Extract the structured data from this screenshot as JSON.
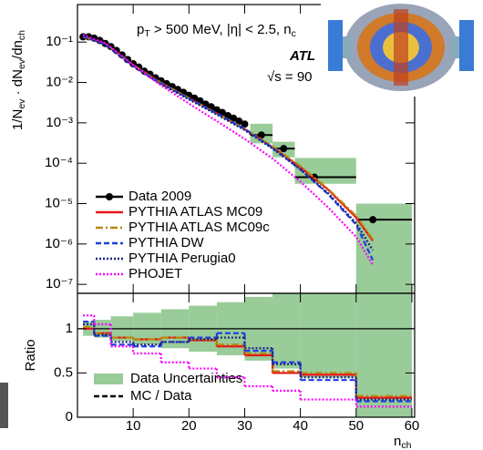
{
  "chart_data": [
    {
      "type": "line",
      "yscale": "log",
      "legend": "lower-left",
      "ylabel": [
        "1/N",
        "ev",
        " · dN",
        "ev",
        "/dn",
        "ch"
      ],
      "annotations": [
        [
          "p",
          "T",
          " > 500 MeV, |η| < 2.5, n",
          "c"
        ],
        [
          "ATL"
        ],
        [
          "√s = 90"
        ]
      ],
      "xlim": [
        0,
        60.5
      ],
      "xticks": [
        10,
        20,
        30,
        40,
        50,
        60
      ],
      "ylim": [
        6e-08,
        0.85
      ],
      "yticks": [
        {
          "value": 1e-07,
          "label": "10⁻⁷"
        },
        {
          "value": 1e-06,
          "label": "10⁻⁶"
        },
        {
          "value": 1e-05,
          "label": "10⁻⁵"
        },
        {
          "value": 0.0001,
          "label": "10⁻⁴"
        },
        {
          "value": 0.001,
          "label": "10⁻³"
        },
        {
          "value": 0.01,
          "label": "10⁻²"
        },
        {
          "value": 0.1,
          "label": "10⁻¹"
        }
      ],
      "band": {
        "color": "#99cc99",
        "edges": [
          31,
          35,
          39,
          50,
          60
        ],
        "low": [
          0.00031,
          0.00014,
          3.1e-05,
          6e-08
        ],
        "high": [
          0.00095,
          0.00034,
          0.000135,
          1e-05
        ]
      },
      "series": [
        {
          "name": "Data 2009",
          "color": "#000000",
          "dash": "solid",
          "marker": true,
          "x": [
            1,
            2,
            3,
            4,
            5,
            6,
            7,
            8,
            9,
            10,
            11,
            12,
            13,
            14,
            15,
            16,
            17,
            18,
            19,
            20,
            21,
            22,
            23,
            24,
            25,
            26,
            27,
            28,
            29,
            30,
            33,
            37,
            42.5,
            53
          ],
          "values": [
            0.135,
            0.135,
            0.125,
            0.11,
            0.092,
            0.077,
            0.062,
            0.048,
            0.037,
            0.029,
            0.024,
            0.019,
            0.016,
            0.013,
            0.011,
            0.0093,
            0.0079,
            0.0067,
            0.0057,
            0.0048,
            0.0041,
            0.0035,
            0.0029,
            0.0025,
            0.0021,
            0.0018,
            0.0015,
            0.0013,
            0.0011,
            0.00093,
            0.0005,
            0.00023,
            4.5e-05,
            4e-06
          ],
          "xbins": [
            null,
            null,
            null,
            null,
            null,
            null,
            null,
            null,
            null,
            null,
            null,
            null,
            null,
            null,
            null,
            null,
            null,
            null,
            null,
            null,
            null,
            null,
            null,
            null,
            null,
            null,
            null,
            null,
            null,
            null,
            [
              31,
              35
            ],
            [
              35,
              39
            ],
            [
              39,
              50
            ],
            [
              50,
              60
            ]
          ]
        },
        {
          "name": "PYTHIA ATLAS MC09",
          "color": "#e8141c",
          "dash": "solid",
          "x": [
            1,
            5,
            10,
            15,
            20,
            25,
            30,
            35,
            40,
            45,
            50,
            53
          ],
          "values": [
            0.135,
            0.09,
            0.027,
            0.0098,
            0.0041,
            0.0017,
            0.0007,
            0.00025,
            8e-05,
            2.2e-05,
            4.5e-06,
            1.2e-06
          ]
        },
        {
          "name": "PYTHIA ATLAS MC09c",
          "color": "#b8860b",
          "dash": "dashdot",
          "x": [
            1,
            5,
            10,
            15,
            20,
            25,
            30,
            35,
            40,
            45,
            50,
            53
          ],
          "values": [
            0.135,
            0.09,
            0.027,
            0.0098,
            0.0041,
            0.0017,
            0.00072,
            0.00026,
            8.5e-05,
            2.3e-05,
            5e-06,
            1.3e-06
          ]
        },
        {
          "name": "PYTHIA DW",
          "color": "#1f3fe0",
          "dash": "dashed",
          "x": [
            1,
            5,
            10,
            15,
            20,
            25,
            30,
            35,
            40,
            45,
            50,
            53
          ],
          "values": [
            0.14,
            0.088,
            0.026,
            0.0095,
            0.004,
            0.0017,
            0.0007,
            0.00024,
            7e-05,
            1.7e-05,
            3e-06,
            4e-07
          ]
        },
        {
          "name": "PYTHIA Perugia0",
          "color": "#1a237e",
          "dash": "dotted",
          "x": [
            1,
            5,
            10,
            15,
            20,
            25,
            30,
            35,
            40,
            45,
            50,
            53
          ],
          "values": [
            0.14,
            0.085,
            0.025,
            0.009,
            0.0038,
            0.0016,
            0.00066,
            0.00023,
            7e-05,
            1.8e-05,
            3.3e-06,
            7e-07
          ]
        },
        {
          "name": "PHOJET",
          "color": "#ff00ff",
          "dash": "dotted",
          "x": [
            1,
            5,
            10,
            15,
            20,
            25,
            30,
            35,
            40,
            45,
            50,
            53
          ],
          "values": [
            0.15,
            0.095,
            0.027,
            0.0085,
            0.003,
            0.0011,
            0.0004,
            0.00013,
            3.5e-05,
            8e-06,
            1.5e-06,
            3e-07
          ]
        }
      ]
    },
    {
      "type": "step",
      "legend": "lower-left",
      "ylabel": "Ratio",
      "xlabel": [
        "n",
        "ch"
      ],
      "xlim": [
        0,
        60.5
      ],
      "xticks": [
        10,
        20,
        30,
        40,
        50,
        60
      ],
      "ylim": [
        0,
        1.4
      ],
      "yticks": [
        0,
        0.5,
        1
      ],
      "reference_line": 1,
      "edges": [
        1,
        3,
        6,
        10,
        15,
        20,
        25,
        30,
        35,
        40,
        50,
        60
      ],
      "band": {
        "name": "Data Uncertainties",
        "color": "#99cc99",
        "errors": [
          0.08,
          0.1,
          0.14,
          0.18,
          0.22,
          0.26,
          0.3,
          0.36,
          0.45,
          0.55,
          1.5
        ]
      },
      "legend_entry": "MC / Data",
      "series": [
        {
          "color": "#e8141c",
          "dash": "solid",
          "values": [
            1.0,
            0.95,
            0.9,
            0.88,
            0.9,
            0.87,
            0.8,
            0.7,
            0.5,
            0.48,
            0.22
          ]
        },
        {
          "color": "#b8860b",
          "dash": "dashdot",
          "values": [
            1.02,
            0.95,
            0.9,
            0.88,
            0.9,
            0.88,
            0.82,
            0.72,
            0.52,
            0.5,
            0.24
          ]
        },
        {
          "color": "#1f3fe0",
          "dash": "dashed",
          "values": [
            1.08,
            0.92,
            0.82,
            0.8,
            0.85,
            0.9,
            0.95,
            0.75,
            0.62,
            0.42,
            0.18
          ]
        },
        {
          "color": "#1a237e",
          "dash": "dotted",
          "values": [
            1.05,
            0.93,
            0.85,
            0.82,
            0.85,
            0.88,
            0.9,
            0.78,
            0.6,
            0.45,
            0.2
          ]
        },
        {
          "color": "#ff00ff",
          "dash": "dotted",
          "values": [
            1.15,
            1.05,
            0.8,
            0.72,
            0.62,
            0.55,
            0.45,
            0.35,
            0.3,
            0.2,
            0.12
          ]
        }
      ]
    }
  ]
}
